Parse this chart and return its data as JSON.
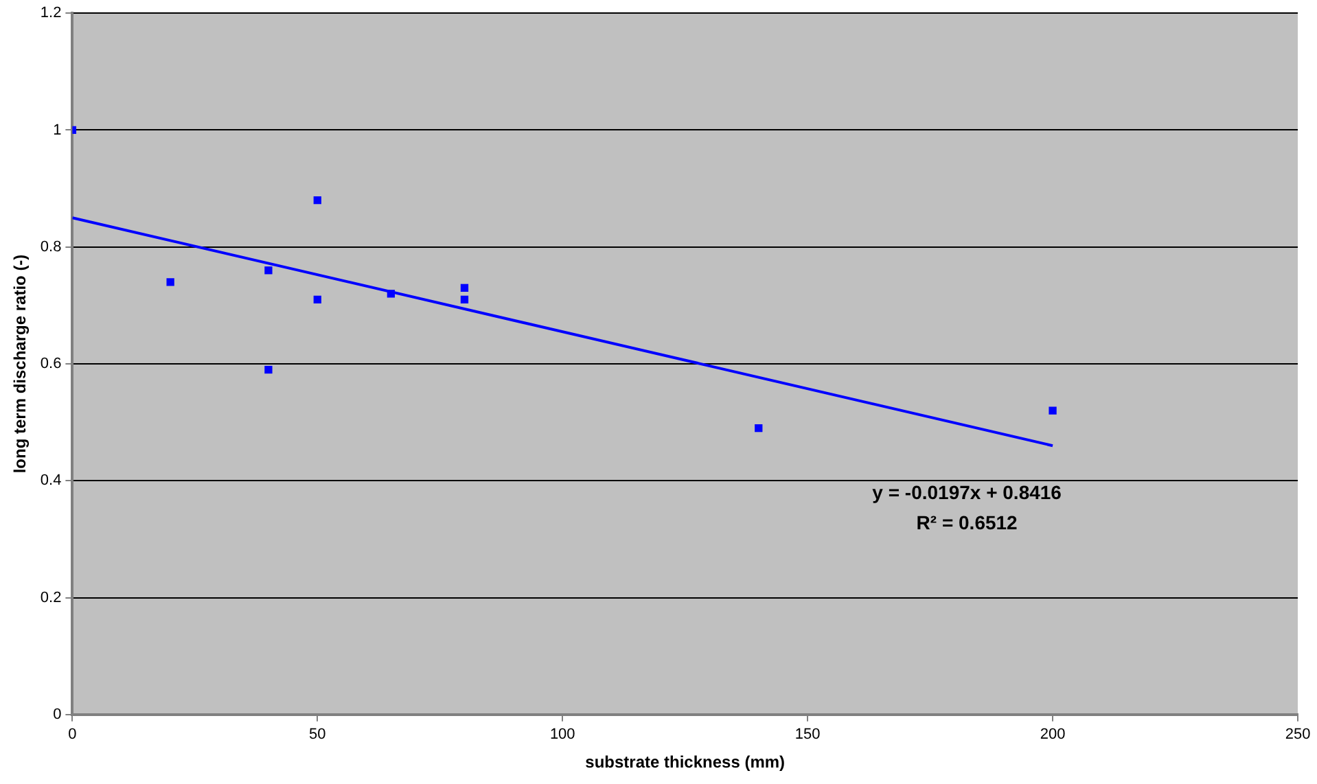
{
  "chart_data": {
    "type": "scatter",
    "xlabel": "substrate thickness (mm)",
    "ylabel": "long term discharge ratio (-)",
    "xlim": [
      0,
      250
    ],
    "xticks": [
      0,
      50,
      100,
      150,
      200,
      250
    ],
    "ylim": [
      0,
      1.2
    ],
    "yticks": [
      0,
      0.2,
      0.4,
      0.6,
      0.8,
      1,
      1.2
    ],
    "grid": "y",
    "legend": false,
    "series": [
      {
        "marker": "square",
        "color": "#0000ff",
        "x": [
          0,
          20,
          40,
          40,
          50,
          50,
          65,
          80,
          80,
          140,
          200
        ],
        "values": [
          1.0,
          0.74,
          0.76,
          0.59,
          0.88,
          0.71,
          0.72,
          0.73,
          0.71,
          0.49,
          0.52
        ]
      },
      {
        "type": "line",
        "color": "#0000ff",
        "x": [
          0,
          200
        ],
        "values": [
          0.85,
          0.46
        ]
      }
    ],
    "annotations": [
      "y = -0.0197x + 0.8416",
      "R² = 0.6512"
    ]
  }
}
